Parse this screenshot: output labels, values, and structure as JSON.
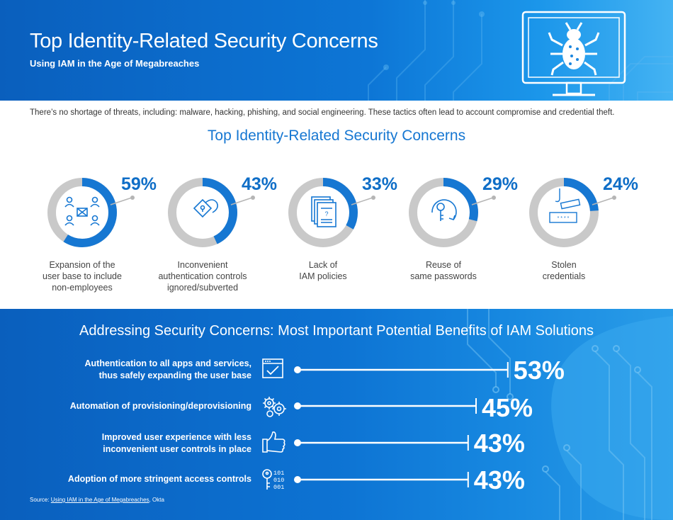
{
  "header": {
    "title": "Top Identity-Related Security Concerns",
    "subtitle": "Using IAM in the Age of Megabreaches",
    "icons": [
      "monitor-icon",
      "bug-icon"
    ]
  },
  "intro": "There’s no shortage of threats, including: malware, hacking, phishing, and social engineering. These tactics often lead to account compromise and credential theft.",
  "colors": {
    "primary_blue": "#0f6ec7",
    "ring_gray": "#c9c9c9",
    "header_blue": "#0a5fbd",
    "light_blue": "#44b3f3"
  },
  "chart_data": [
    {
      "type": "donut",
      "title": "Top Identity-Related Security Concerns",
      "unit": "%",
      "categories": [
        "Expansion of the user base to include non-employees",
        "Inconvenient authentication controls ignored/subverted",
        "Lack of IAM policies",
        "Reuse of same passwords",
        "Stolen credentials"
      ],
      "values": [
        59,
        43,
        33,
        29,
        24
      ],
      "labels": [
        "59%",
        "43%",
        "33%",
        "29%",
        "24%"
      ],
      "icons": [
        "users-network-icon",
        "lock-icon",
        "policy-document-icon",
        "key-reuse-icon",
        "phishing-password-icon"
      ]
    },
    {
      "type": "bar",
      "title": "Addressing Security Concerns: Most Important Potential Benefits of IAM Solutions",
      "unit": "%",
      "categories": [
        "Authentication to all apps and services, thus safely expanding the user base",
        "Automation of provisioning/deprovisioning",
        "Improved user experience with less inconvenient user controls in place",
        "Adoption of more stringent access controls"
      ],
      "values": [
        53,
        45,
        43,
        43
      ],
      "labels": [
        "53%",
        "45%",
        "43%",
        "43%"
      ],
      "icons": [
        "browser-check-icon",
        "gears-icon",
        "thumbs-up-icon",
        "key-binary-icon"
      ]
    }
  ],
  "concerns": [
    {
      "pct": "59%",
      "line1": "Expansion of the",
      "line2": "user base to include",
      "line3": "non-employees"
    },
    {
      "pct": "43%",
      "line1": "Inconvenient",
      "line2": "authentication controls",
      "line3": "ignored/subverted"
    },
    {
      "pct": "33%",
      "line1": "Lack of",
      "line2": "IAM policies",
      "line3": ""
    },
    {
      "pct": "29%",
      "line1": "Reuse of",
      "line2": "same passwords",
      "line3": ""
    },
    {
      "pct": "24%",
      "line1": "Stolen",
      "line2": "credentials",
      "line3": ""
    }
  ],
  "benefits_section": {
    "title": "Addressing Security Concerns: Most Important Potential Benefits of IAM Solutions",
    "items": [
      {
        "pct": "53%",
        "line1": "Authentication to all apps and services,",
        "line2": "thus safely expanding the user base"
      },
      {
        "pct": "45%",
        "line1": "Automation of provisioning/deprovisioning",
        "line2": ""
      },
      {
        "pct": "43%",
        "line1": "Improved user experience with less",
        "line2": "inconvenient user controls in place"
      },
      {
        "pct": "43%",
        "line1": "Adoption of more stringent access controls",
        "line2": ""
      }
    ],
    "binary_text": [
      "101",
      "010",
      "001"
    ]
  },
  "source": {
    "prefix": "Source: ",
    "link": "Using IAM in the Age of Megabreaches",
    "suffix": ", Okta"
  }
}
